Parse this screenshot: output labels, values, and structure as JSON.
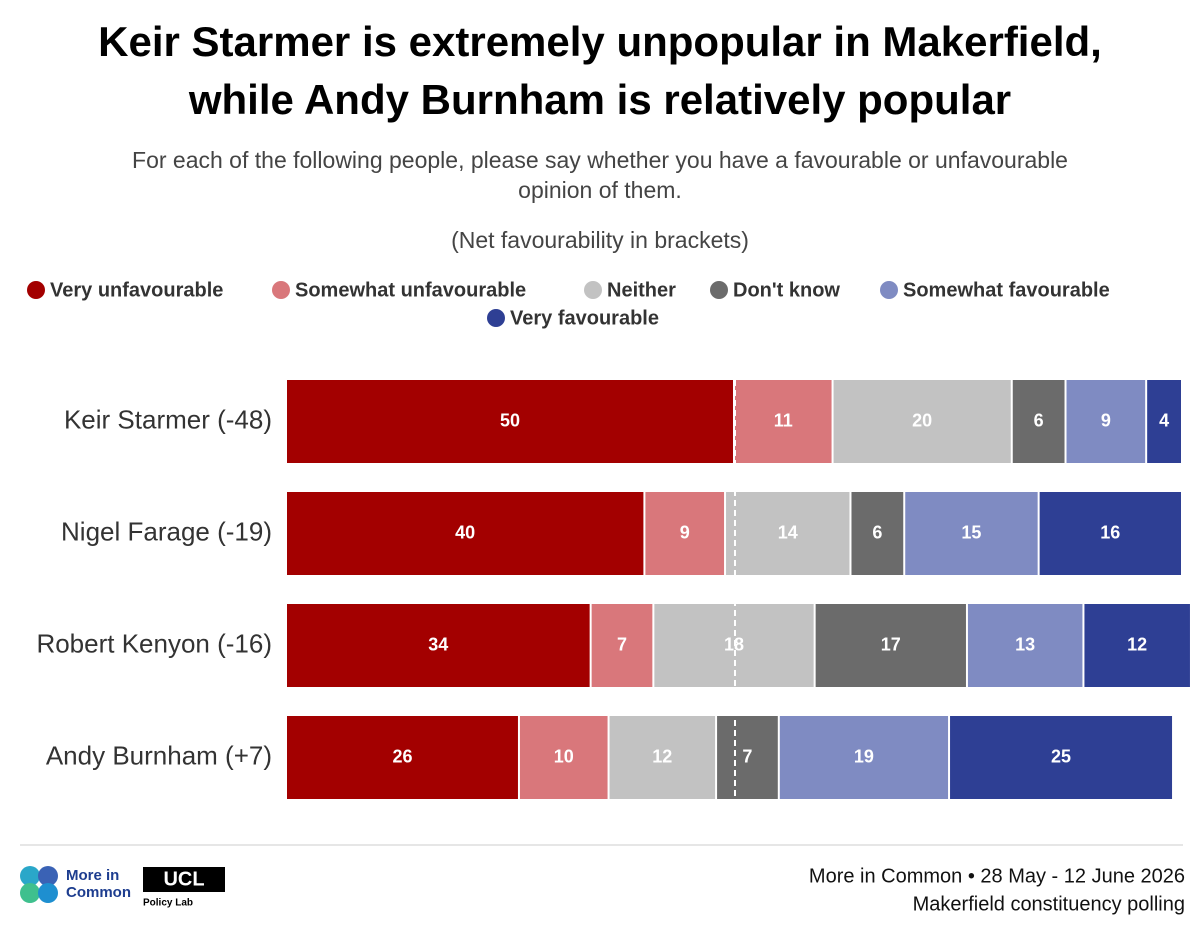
{
  "chart_data": {
    "type": "stacked-bar-horizontal",
    "title": [
      "Keir Starmer is extremely unpopular in Makerfield,",
      "while Andy Burnham is relatively popular"
    ],
    "subtitle": [
      "For each of the following people, please say whether you have a favourable or unfavourable",
      "opinion of them."
    ],
    "note": "(Net favourability in brackets)",
    "categories": [
      "Keir Starmer (-48)",
      "Nigel Farage (-19)",
      "Robert Kenyon (-16)",
      "Andy Burnham (+7)"
    ],
    "series": [
      {
        "name": "Very unfavourable",
        "color": "#a30000",
        "values": [
          50,
          40,
          34,
          26
        ]
      },
      {
        "name": "Somewhat unfavourable",
        "color": "#d9777b",
        "values": [
          11,
          9,
          7,
          10
        ]
      },
      {
        "name": "Neither",
        "color": "#c2c2c2",
        "values": [
          20,
          14,
          18,
          12
        ]
      },
      {
        "name": "Don't know",
        "color": "#6b6b6b",
        "values": [
          6,
          6,
          17,
          7
        ]
      },
      {
        "name": "Somewhat favourable",
        "color": "#7f8bc2",
        "values": [
          9,
          15,
          13,
          19
        ]
      },
      {
        "name": "Very favourable",
        "color": "#2e3f94",
        "values": [
          4,
          16,
          12,
          25
        ]
      }
    ],
    "xlim": [
      0,
      100
    ],
    "reference_x": 50,
    "footer": {
      "logo_text": [
        "More in",
        "Common"
      ],
      "ucl": "UCL",
      "ucl_sub": "Policy Lab",
      "source": [
        "More in Common • 28 May - 12 June 2026",
        "Makerfield constituency polling"
      ]
    }
  }
}
